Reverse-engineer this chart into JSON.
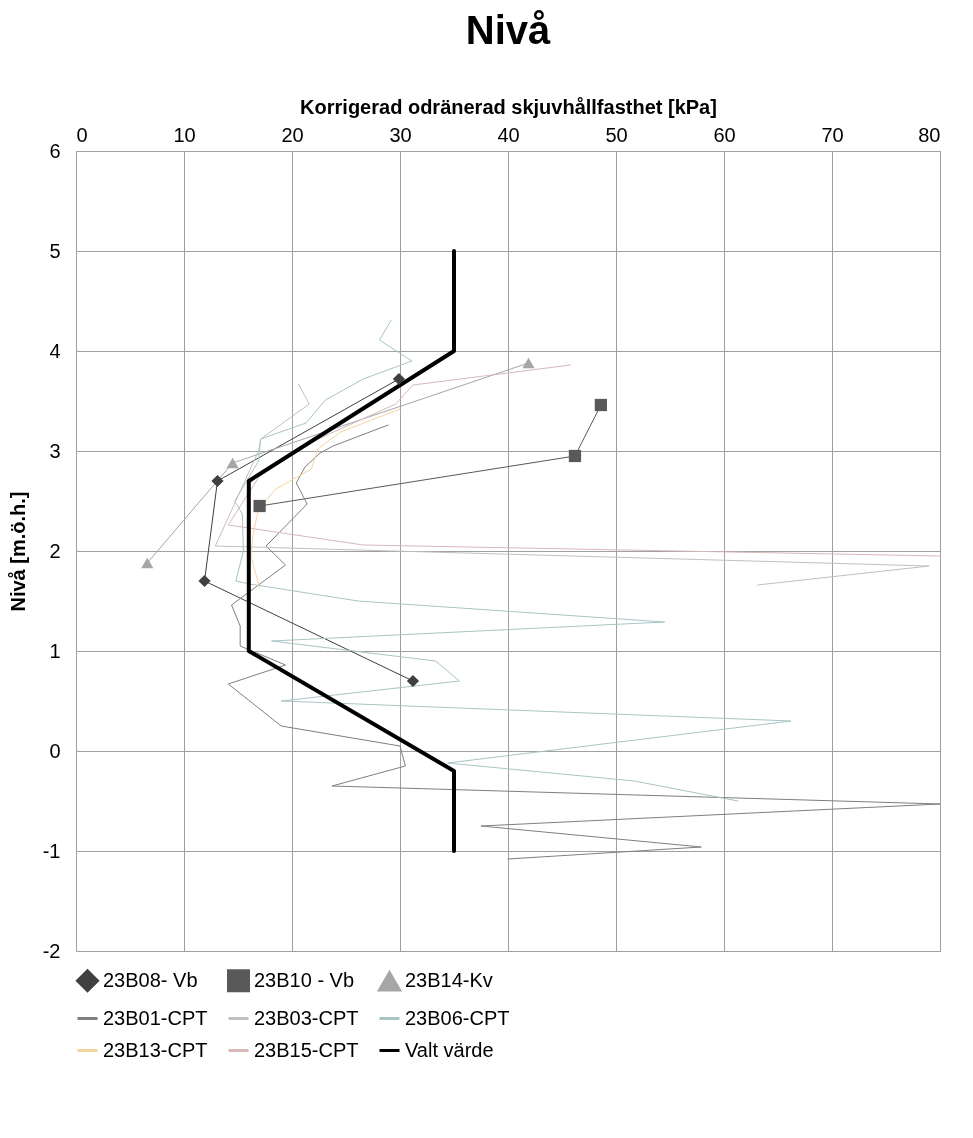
{
  "chart_data": {
    "type": "line",
    "title": "Nivå",
    "xlabel": "Korrigerad odränerad skjuvhållfasthet [kPa]",
    "ylabel": "Nivå [m.ö.h.]",
    "xlim": [
      0,
      80
    ],
    "xticks": [
      0,
      10,
      20,
      30,
      40,
      50,
      60,
      70,
      80
    ],
    "ylim": [
      -2,
      6
    ],
    "yticks": [
      -2,
      -1,
      0,
      1,
      2,
      3,
      4,
      5,
      6
    ],
    "grid": true,
    "legend": "bottom",
    "series": [
      {
        "name": "23B08- Vb",
        "color": "#404040",
        "marker": "diamond",
        "x": [
          29.9,
          13.1,
          11.9,
          31.2
        ],
        "values": [
          3.72,
          2.7,
          1.7,
          0.7
        ]
      },
      {
        "name": "23B10 - Vb",
        "color": "#595959",
        "marker": "square",
        "x": [
          48.6,
          46.2,
          17.0
        ],
        "values": [
          3.46,
          2.95,
          2.45
        ]
      },
      {
        "name": "23B14-Kv",
        "color": "#a6a6a6",
        "marker": "triangle",
        "x": [
          41.9,
          14.5,
          6.6
        ],
        "values": [
          3.88,
          2.88,
          1.88
        ]
      },
      {
        "name": "23B01-CPT",
        "color": "#7f7f7f",
        "marker": "none",
        "x": [
          28.9,
          23.8,
          22.6,
          21.2,
          20.4,
          21.4,
          17.6,
          19.4,
          14.4,
          15.2,
          15.2,
          19.4,
          14.1,
          19.0,
          30.0,
          30.5,
          23.7,
          80,
          37.5,
          57.9,
          40
        ],
        "values": [
          3.26,
          3.05,
          2.98,
          2.84,
          2.68,
          2.47,
          2.05,
          1.86,
          1.46,
          1.25,
          1.05,
          0.86,
          0.67,
          0.25,
          0.05,
          -0.15,
          -0.35,
          -0.53,
          -0.75,
          -0.96,
          -1.08
        ]
      },
      {
        "name": "23B03-CPT",
        "color": "#c0c0c0",
        "marker": "none",
        "x": [
          20.6,
          21.6,
          17.1,
          16.9,
          12.9,
          79,
          63.1
        ],
        "values": [
          3.67,
          3.47,
          3.12,
          3.0,
          2.05,
          1.85,
          1.66
        ]
      },
      {
        "name": "23B06-CPT",
        "color": "#a9c4c4",
        "marker": "none",
        "x": [
          29.2,
          28.1,
          31.1,
          26.6,
          23.1,
          21.3,
          17.1,
          16.9,
          14.7,
          15.4,
          15.5,
          14.8,
          16.1,
          26.1,
          54.5,
          18.1,
          33.3,
          35.5,
          19.0,
          66.2,
          34.4,
          51.7,
          61.3
        ],
        "values": [
          4.31,
          4.11,
          3.9,
          3.72,
          3.51,
          3.28,
          3.12,
          2.9,
          2.5,
          2.37,
          2.0,
          1.7,
          1.67,
          1.5,
          1.29,
          1.1,
          0.9,
          0.7,
          0.5,
          0.3,
          -0.12,
          -0.3,
          -0.5
        ]
      },
      {
        "name": "23B13-CPT",
        "color": "#f4d59e",
        "marker": "none",
        "x": [
          30.0,
          24.5,
          22.4,
          21.8,
          18.5,
          16.9,
          16.4,
          16.2,
          17.0
        ],
        "values": [
          3.42,
          3.19,
          3.02,
          2.82,
          2.62,
          2.42,
          2.17,
          1.95,
          1.63
        ]
      },
      {
        "name": "23B15-CPT",
        "color": "#d9b8b8",
        "marker": "none",
        "x": [
          45.8,
          31.2,
          29.6,
          22.0,
          17.0,
          14.1,
          26.6,
          80
        ],
        "values": [
          3.86,
          3.66,
          3.47,
          3.1,
          2.75,
          2.26,
          2.06,
          1.95
        ]
      },
      {
        "name": "Valt värde",
        "color": "#000000",
        "marker": "none",
        "x": [
          35,
          35,
          16,
          16,
          35,
          35
        ],
        "values": [
          5,
          4,
          2.7,
          1,
          -0.2,
          -1
        ]
      }
    ]
  }
}
